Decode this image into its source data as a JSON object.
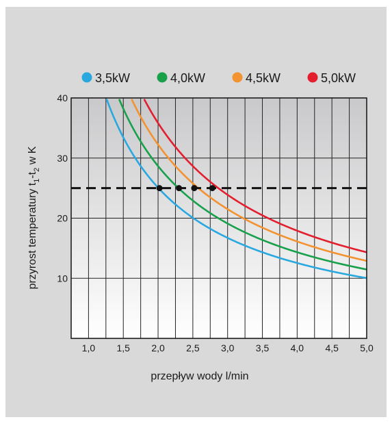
{
  "chart_data": {
    "type": "line",
    "xlabel": "przepływ wody l/min",
    "ylabel": {
      "prefix": "przyrost temperatury t",
      "sub1": "1",
      "mid": "-t",
      "sub2": "2",
      "suffix": " w K"
    },
    "xlim": [
      0.75,
      5.0
    ],
    "ylim": [
      0,
      40
    ],
    "x_ticks": [
      "1,0",
      "1,5",
      "2,0",
      "2,5",
      "3,0",
      "3,5",
      "4,0",
      "4,5",
      "5,0"
    ],
    "y_ticks": [
      "10",
      "20",
      "30",
      "40"
    ],
    "grid": "vertical every 0.25, horizontal every 10",
    "legend_position": "top",
    "reference_line": {
      "y": 25,
      "style": "dashed"
    },
    "series": [
      {
        "name": "3,5kW",
        "color": "#29a8e0",
        "power_kw": 3.5,
        "x_start": 1.26,
        "x_end": 5.0,
        "marker_x": 2.02
      },
      {
        "name": "4,0kW",
        "color": "#18a04a",
        "power_kw": 4.0,
        "x_start": 1.44,
        "x_end": 5.0,
        "marker_x": 2.3
      },
      {
        "name": "4,5kW",
        "color": "#f39230",
        "power_kw": 4.5,
        "x_start": 1.62,
        "x_end": 5.0,
        "marker_x": 2.52
      },
      {
        "name": "5,0kW",
        "color": "#e31e2d",
        "power_kw": 5.0,
        "x_start": 1.8,
        "x_end": 5.0,
        "marker_x": 2.78
      }
    ]
  }
}
